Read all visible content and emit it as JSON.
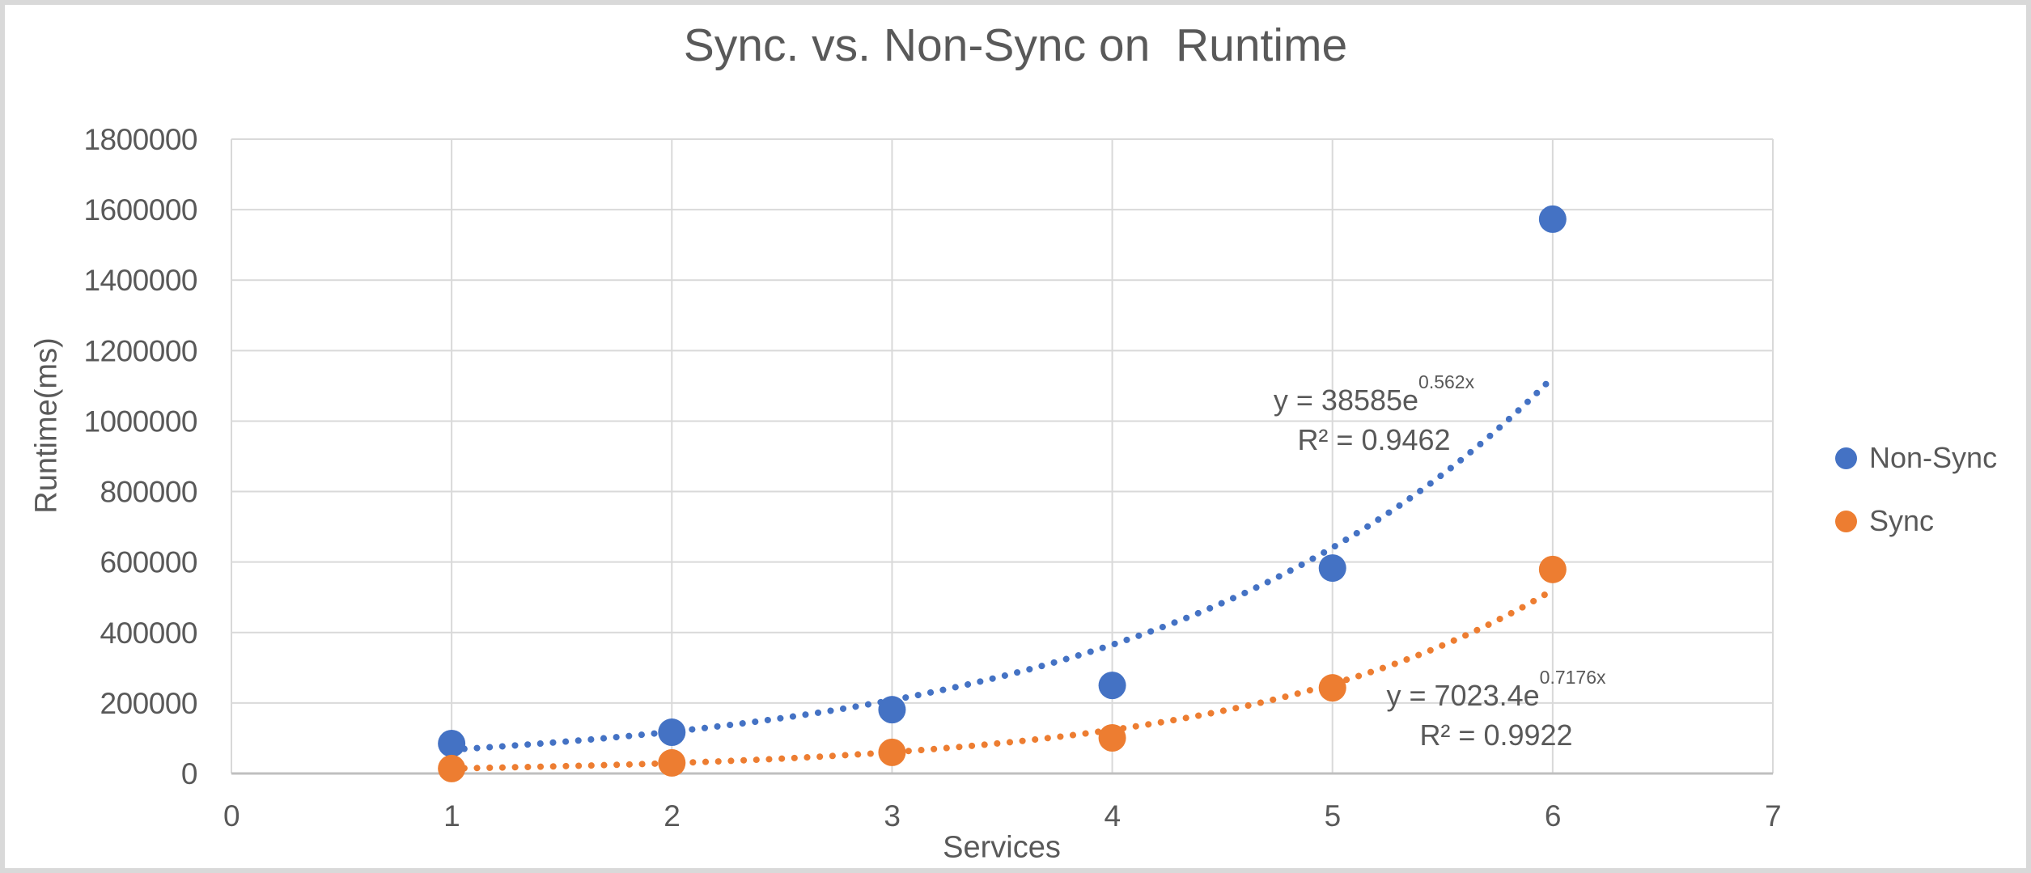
{
  "window": {
    "background": "#ffffff",
    "border_color": "#d9d9d9"
  },
  "colors": {
    "text": "#595959",
    "gridline": "#d9d9d9",
    "axis_line": "#bfbfbf",
    "nonsync_blue": "#4472C4",
    "sync_orange": "#ED7D31"
  },
  "chart_data": {
    "type": "scatter",
    "title": "Sync. vs. Non-Sync on  Runtime",
    "xlabel": "Services",
    "ylabel": "Runtime(ms)",
    "xlim": [
      0,
      7
    ],
    "ylim": [
      0,
      1800000
    ],
    "x_ticks": [
      0,
      1,
      2,
      3,
      4,
      5,
      6,
      7
    ],
    "y_ticks": [
      0,
      200000,
      400000,
      600000,
      800000,
      1000000,
      1200000,
      1400000,
      1600000,
      1800000
    ],
    "grid": true,
    "legend_position": "right",
    "series": [
      {
        "name": "Non-Sync",
        "color": "#4472C4",
        "x": [
          1,
          2,
          3,
          4,
          5,
          6
        ],
        "values": [
          85000,
          117000,
          181000,
          250000,
          583000,
          1573000
        ],
        "trendline": {
          "type": "exponential",
          "coefficient": 38585,
          "rate": 0.562,
          "x_range": [
            1,
            6
          ],
          "equation_base": "y = 38585e",
          "equation_exponent": "0.562x",
          "r_squared_label": "R² = 0.9462"
        }
      },
      {
        "name": "Sync",
        "color": "#ED7D31",
        "x": [
          1,
          2,
          3,
          4,
          5,
          6
        ],
        "values": [
          14000,
          30000,
          60000,
          101000,
          243000,
          579000
        ],
        "trendline": {
          "type": "exponential",
          "coefficient": 7023.4,
          "rate": 0.7176,
          "x_range": [
            1,
            6
          ],
          "equation_base": "y = 7023.4e",
          "equation_exponent": "0.7176x",
          "r_squared_label": "R² = 0.9922"
        }
      }
    ]
  }
}
